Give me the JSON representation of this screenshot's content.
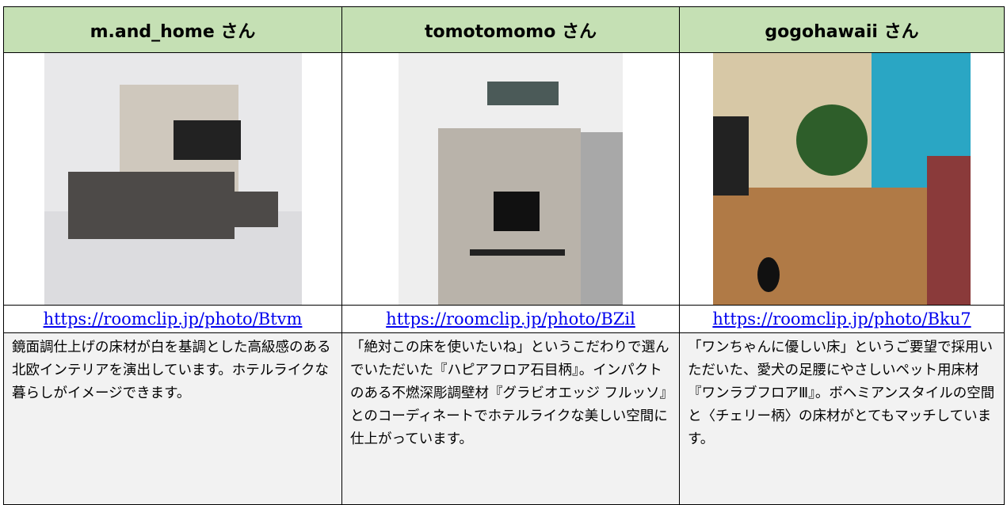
{
  "table": {
    "columns": [
      {
        "name": "m.and_home さん",
        "url": "https://roomclip.jp/photo/Btvm",
        "description": "鏡面調仕上げの床材が白を基調とした高級感のある北欧インテリアを演出しています。ホテルライクな暮らしがイメージできます。"
      },
      {
        "name": "tomotomomo さん",
        "url": "https://roomclip.jp/photo/BZil",
        "description": "「絶対この床を使いたいね」というこだわりで選んでいただいた『ハピアフロア石目柄』。インパクトのある不燃深彫調壁材『グラビオエッジ フルッソ』とのコーディネートでホテルライクな美しい空間に仕上がっています。"
      },
      {
        "name": "gogohawaii さん",
        "url": "https://roomclip.jp/photo/Bku7",
        "description": "「ワンちゃんに優しい床」というご要望で採用いただいた、愛犬の足腰にやさしいペット用床材『ワンラブフロアⅢ』。ボヘミアンスタイルの空間と〈チェリー柄〉の床材がとてもマッチしています。"
      }
    ]
  }
}
